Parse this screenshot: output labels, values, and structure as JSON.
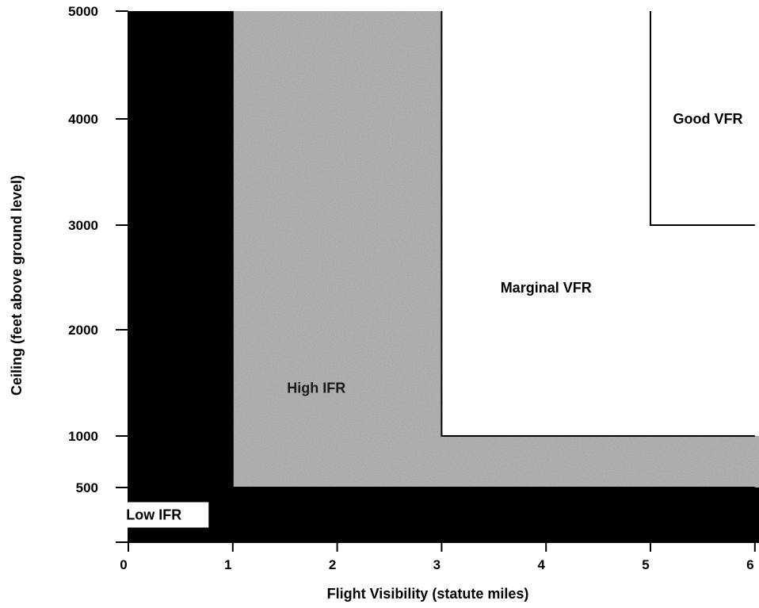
{
  "chart_data": {
    "type": "area",
    "xlabel": "Flight Visibility (statute miles)",
    "ylabel": "Ceiling (feet above ground level)",
    "xlim": [
      0,
      6
    ],
    "ylim": [
      0,
      5000
    ],
    "x_ticks": [
      {
        "value": 0,
        "label": "0"
      },
      {
        "value": 1,
        "label": "1"
      },
      {
        "value": 2,
        "label": "2"
      },
      {
        "value": 3,
        "label": "3"
      },
      {
        "value": 4,
        "label": "4"
      },
      {
        "value": 5,
        "label": "5"
      },
      {
        "value": 6,
        "label": "6"
      }
    ],
    "y_ticks": [
      {
        "value": 0,
        "label": ""
      },
      {
        "value": 500,
        "label": "500"
      },
      {
        "value": 1000,
        "label": "1000"
      },
      {
        "value": 2000,
        "label": "2000"
      },
      {
        "value": 3000,
        "label": "3000"
      },
      {
        "value": 4000,
        "label": "4000"
      },
      {
        "value": 5000,
        "label": "5000"
      }
    ],
    "regions": [
      {
        "name": "Low IFR",
        "condition": "visibility < 1 mi or ceiling < 500 ft",
        "fill": "#000000",
        "label_color": "#000000",
        "label_bg": "#ffffff",
        "label_at": [
          0.45,
          250
        ]
      },
      {
        "name": "High IFR",
        "condition": "visibility 1-3 mi or ceiling 500-1000 ft",
        "fill": "#b4b4b4",
        "label_color": "#1a1a1a",
        "label_at": [
          1.8,
          1450
        ]
      },
      {
        "name": "Marginal VFR",
        "condition": "visibility 3-5 mi or ceiling 1000-3000 ft",
        "fill": "#ffffff",
        "label_color": "#000000",
        "label_at": [
          4.0,
          2400
        ]
      },
      {
        "name": "Good VFR",
        "condition": "visibility > 5 mi and ceiling > 3000 ft",
        "fill": "#ffffff",
        "label_color": "#000000",
        "label_at": [
          5.55,
          4000
        ]
      }
    ],
    "boundaries": [
      {
        "name": "high-ifr-outer",
        "points": [
          [
            1,
            5000
          ],
          [
            1,
            500
          ],
          [
            6,
            500
          ]
        ]
      },
      {
        "name": "marginal-vfr-inner",
        "points": [
          [
            3,
            5000
          ],
          [
            3,
            1000
          ],
          [
            6,
            1000
          ]
        ]
      },
      {
        "name": "good-vfr-inner",
        "points": [
          [
            5,
            5000
          ],
          [
            5,
            3000
          ],
          [
            6,
            3000
          ]
        ]
      }
    ],
    "grid": false,
    "legend": "none"
  }
}
